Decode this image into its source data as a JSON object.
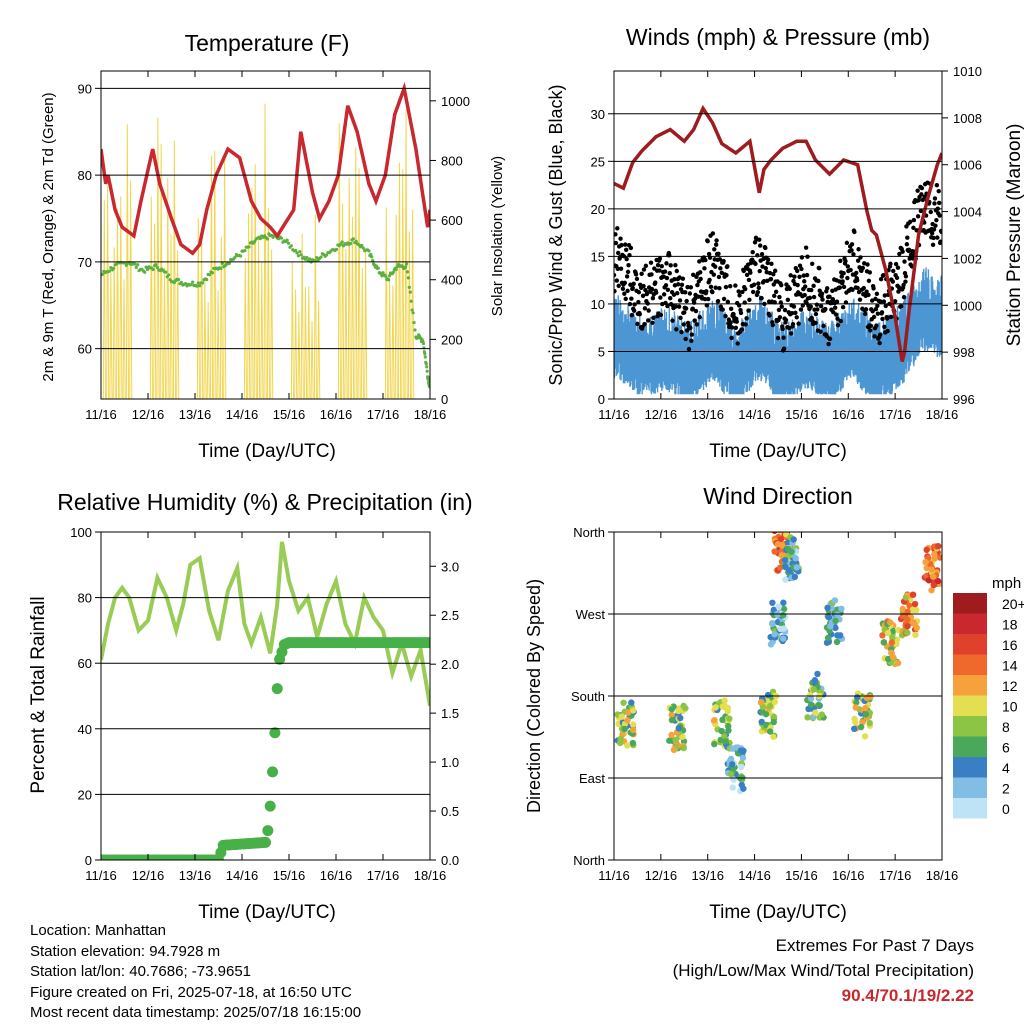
{
  "panels": {
    "temperature": {
      "title": "Temperature (F)",
      "ylabel": "2m & 9m T (Red, Orange) & 2m Td (Green)",
      "y2label": "Solar Insolation (Yellow)",
      "xlabel": "Time (Day/UTC)"
    },
    "winds": {
      "title": "Winds (mph) & Pressure (mb)",
      "ylabel": "Sonic/Prop Wind & Gust (Blue, Black)",
      "y2label": "Station Pressure (Maroon)",
      "xlabel": "Time (Day/UTC)"
    },
    "humidity": {
      "title": "Relative Humidity (%) & Precipitation (in)",
      "ylabel": "Percent & Total Rainfall",
      "xlabel": "Time (Day/UTC)"
    },
    "direction": {
      "title": "Wind Direction",
      "ylabel": "Direction (Colored By Speed)",
      "xlabel": "Time (Day/UTC)",
      "colorbar_title": "mph",
      "colorbar_labels": [
        "20+",
        "18",
        "16",
        "14",
        "12",
        "10",
        "8",
        "6",
        "4",
        "2",
        "0"
      ],
      "colorbar_colors": [
        "#9e1b1e",
        "#c8282e",
        "#e0412c",
        "#f0692c",
        "#f6a13c",
        "#e4de52",
        "#8cc443",
        "#4aa85a",
        "#3a7fc4",
        "#82bde6",
        "#bfe3f6"
      ]
    }
  },
  "info": {
    "location": "Location: Manhattan",
    "elevation": "Station elevation: 94.7928 m",
    "latlon": "Station lat/lon: 40.7686; -73.9651",
    "created": "Figure created on Fri, 2025-07-18, at 16:50 UTC",
    "recent": "Most recent data timestamp: 2025/07/18 16:15:00"
  },
  "extremes": {
    "title": "Extremes For Past 7 Days",
    "subtitle": "(High/Low/Max Wind/Total Precipitation)",
    "values": "90.4/70.1/19/2.22",
    "value_color": "#c8282e"
  },
  "chart_data": [
    {
      "type": "line",
      "x_ticks": [
        "11/16",
        "12/16",
        "13/16",
        "14/16",
        "15/16",
        "16/16",
        "17/16",
        "18/16"
      ],
      "y_ticks": [
        60,
        70,
        80,
        90
      ],
      "ylim": [
        54.2,
        92
      ],
      "y2_ticks": [
        0,
        200,
        400,
        600,
        800,
        1000
      ],
      "y2lim": [
        0,
        1100
      ],
      "grid": "horizontal at left ticks",
      "series": [
        {
          "color": "#c8282e",
          "x": [
            0,
            0.1,
            0.15,
            0.3,
            0.45,
            0.7,
            0.85,
            1.1,
            1.25,
            1.5,
            1.7,
            1.95,
            2.1,
            2.25,
            2.45,
            2.7,
            2.95,
            3.2,
            3.4,
            3.6,
            3.75,
            4.1,
            4.25,
            4.5,
            4.65,
            4.85,
            5.05,
            5.25,
            5.45,
            5.7,
            5.85,
            6.05,
            6.25,
            6.45,
            6.7,
            6.95,
            7.0
          ],
          "y": [
            83,
            79,
            80,
            76,
            74,
            73,
            77,
            83,
            79,
            75,
            72,
            71,
            72,
            76,
            80,
            83,
            82,
            77,
            75,
            74,
            73,
            76,
            85,
            78,
            75,
            77,
            80,
            88,
            85,
            79,
            77,
            80,
            87,
            90,
            83,
            74,
            76
          ]
        },
        {
          "color": "#5cb040",
          "x": [
            0,
            0.3,
            0.6,
            0.9,
            1.2,
            1.5,
            1.8,
            2.1,
            2.4,
            2.7,
            3.0,
            3.3,
            3.6,
            3.9,
            4.2,
            4.5,
            4.8,
            5.1,
            5.4,
            5.7,
            5.9,
            6.1,
            6.3,
            6.5,
            6.7,
            6.85,
            6.95,
            7.0
          ],
          "y": [
            68.5,
            69.5,
            70,
            69,
            69.5,
            68,
            67.5,
            67.5,
            69,
            70,
            71,
            72.5,
            73,
            72.5,
            71,
            70,
            71,
            72,
            72.5,
            71,
            69,
            68,
            69.5,
            69.5,
            61.5,
            61,
            57,
            55.5
          ]
        },
        {
          "color": "#f2d651",
          "axis": "right",
          "x": [
            0.5,
            1.5,
            2.5,
            3.5,
            4.5,
            5.5,
            6.5
          ],
          "y_peak": [
            1000,
            1100,
            850,
            1000,
            650,
            1000,
            1000
          ]
        }
      ]
    },
    {
      "type": "line",
      "x_ticks": [
        "11/16",
        "12/16",
        "13/16",
        "14/16",
        "15/16",
        "16/16",
        "17/16",
        "18/16"
      ],
      "y_ticks": [
        0,
        5,
        10,
        15,
        20,
        25,
        30
      ],
      "ylim": [
        0,
        34.5
      ],
      "y2_ticks": [
        996,
        998,
        1000,
        1002,
        1004,
        1006,
        1008,
        1010
      ],
      "y2lim": [
        996,
        1010
      ],
      "grid": "horizontal at left ticks",
      "series": [
        {
          "color": "#9e1b1e",
          "axis": "right",
          "x": [
            0,
            0.2,
            0.4,
            0.6,
            0.9,
            1.2,
            1.5,
            1.7,
            1.9,
            2.1,
            2.3,
            2.6,
            2.9,
            3.1,
            3.2,
            3.35,
            3.6,
            3.9,
            4.1,
            4.3,
            4.6,
            4.9,
            5.2,
            5.4,
            5.5,
            5.6,
            5.8,
            6.0,
            6.15,
            6.2,
            6.3,
            6.5,
            6.7,
            6.9,
            7.0
          ],
          "y": [
            1005.2,
            1005.0,
            1006.1,
            1006.6,
            1007.2,
            1007.5,
            1007.0,
            1007.5,
            1008.4,
            1007.8,
            1006.9,
            1006.5,
            1007.0,
            1004.8,
            1005.8,
            1006.2,
            1006.7,
            1007.0,
            1007.0,
            1006.2,
            1005.6,
            1006.2,
            1006.0,
            1004.0,
            1003.2,
            1003.0,
            1001.5,
            999.5,
            997.6,
            998.0,
            999.8,
            1003.0,
            1004.6,
            1006.0,
            1006.5
          ]
        },
        {
          "color": "#000000",
          "name_hint": "gust",
          "x": [
            0.1,
            0.6,
            1.1,
            1.6,
            2.1,
            2.6,
            3.1,
            3.6,
            4.1,
            4.6,
            5.1,
            5.6,
            6.1,
            6.6,
            7.0
          ],
          "y": [
            14,
            10,
            12,
            8,
            14,
            8,
            14,
            8,
            12,
            8,
            14,
            8,
            12,
            20,
            18
          ]
        },
        {
          "color": "#4d96d4",
          "name_hint": "wind",
          "x": [
            0.1,
            0.6,
            1.1,
            1.6,
            2.1,
            2.6,
            3.1,
            3.6,
            4.1,
            4.6,
            5.1,
            5.6,
            6.1,
            6.6,
            7.0
          ],
          "y": [
            7,
            5,
            6,
            4,
            7,
            4,
            7,
            4,
            6,
            4,
            7,
            4,
            6,
            10,
            9
          ]
        }
      ]
    },
    {
      "type": "line",
      "x_ticks": [
        "11/16",
        "12/16",
        "13/16",
        "14/16",
        "15/16",
        "16/16",
        "17/16",
        "18/16"
      ],
      "y_ticks": [
        0,
        20,
        40,
        60,
        80,
        100
      ],
      "ylim": [
        0,
        100
      ],
      "y2_ticks": [
        "0.0",
        "0.5",
        "1.0",
        "1.5",
        "2.0",
        "2.5",
        "3.0"
      ],
      "y2lim": [
        0,
        3.35
      ],
      "grid": "horizontal at left ticks",
      "series": [
        {
          "color": "#99cc55",
          "x": [
            0,
            0.15,
            0.3,
            0.45,
            0.6,
            0.8,
            1.0,
            1.2,
            1.4,
            1.6,
            1.75,
            1.9,
            2.1,
            2.3,
            2.5,
            2.7,
            2.9,
            3.05,
            3.2,
            3.4,
            3.6,
            3.75,
            3.85,
            4.0,
            4.2,
            4.4,
            4.6,
            4.8,
            5.0,
            5.2,
            5.4,
            5.6,
            5.8,
            6.0,
            6.2,
            6.4,
            6.6,
            6.8,
            7.0
          ],
          "y": [
            61,
            72,
            80,
            83,
            80,
            70,
            73,
            86,
            80,
            70,
            78,
            90,
            92,
            76,
            67,
            82,
            89,
            72,
            66,
            74,
            63,
            78,
            97,
            85,
            76,
            80,
            68,
            78,
            85,
            72,
            66,
            80,
            74,
            70,
            57,
            66,
            56,
            64,
            47
          ]
        },
        {
          "color": "#48b048",
          "axis": "right",
          "x": [
            0,
            2.5,
            2.6,
            3.5,
            3.55,
            3.6,
            3.65,
            3.7,
            3.75,
            3.8,
            3.9,
            4.0,
            5.0,
            6.0,
            7.0
          ],
          "y": [
            0,
            0,
            0.15,
            0.18,
            0.3,
            0.55,
            0.9,
            1.3,
            1.75,
            2.05,
            2.2,
            2.22,
            2.22,
            2.22,
            2.22
          ]
        }
      ]
    },
    {
      "type": "scatter",
      "x_ticks": [
        "11/16",
        "12/16",
        "13/16",
        "14/16",
        "15/16",
        "16/16",
        "17/16",
        "18/16"
      ],
      "y_ticks": [
        "North",
        "East",
        "South",
        "West",
        "North"
      ],
      "ylim": [
        0,
        360
      ],
      "grid": "horizontal at ticks",
      "legend": "colorbar right",
      "clusters": [
        {
          "x": 0.25,
          "dir": 150,
          "speed": 8
        },
        {
          "x": 1.35,
          "dir": 145,
          "speed": 8
        },
        {
          "x": 2.3,
          "dir": 150,
          "speed": 8
        },
        {
          "x": 2.6,
          "dir": 100,
          "speed": 4
        },
        {
          "x": 3.3,
          "dir": 160,
          "speed": 8
        },
        {
          "x": 3.5,
          "dir": 260,
          "speed": 4
        },
        {
          "x": 3.6,
          "dir": 340,
          "speed": 14
        },
        {
          "x": 3.8,
          "dir": 330,
          "speed": 4
        },
        {
          "x": 4.3,
          "dir": 180,
          "speed": 6
        },
        {
          "x": 4.7,
          "dir": 260,
          "speed": 4
        },
        {
          "x": 5.3,
          "dir": 160,
          "speed": 8
        },
        {
          "x": 5.9,
          "dir": 240,
          "speed": 10
        },
        {
          "x": 6.3,
          "dir": 270,
          "speed": 12
        },
        {
          "x": 6.8,
          "dir": 320,
          "speed": 14
        }
      ]
    }
  ]
}
